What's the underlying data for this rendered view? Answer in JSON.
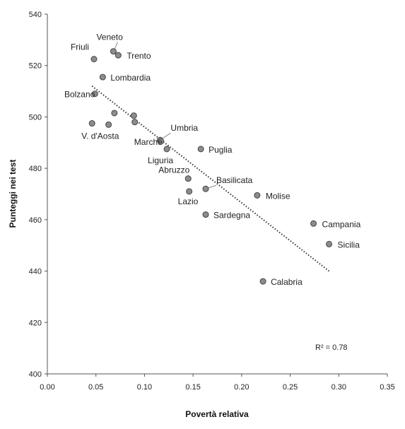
{
  "chart_data": {
    "type": "scatter",
    "title": "",
    "xlabel": "Povertà relativa",
    "ylabel": "Punteggi nei test",
    "xlim": [
      0.0,
      0.35
    ],
    "ylim": [
      400,
      540
    ],
    "x_ticks": [
      "0.00",
      "0.05",
      "0.10",
      "0.15",
      "0.20",
      "0.25",
      "0.30",
      "0.35"
    ],
    "y_ticks": [
      "400",
      "420",
      "440",
      "460",
      "480",
      "500",
      "520",
      "540"
    ],
    "grid": false,
    "legend": "none",
    "marker_color": "#8c8c8c",
    "trendline": {
      "style": "dotted",
      "x": [
        0.046,
        0.29
      ],
      "y": [
        512,
        440
      ]
    },
    "r2_label": "R² = 0.78",
    "points": [
      {
        "label": "Veneto",
        "x": 0.068,
        "y": 525.5
      },
      {
        "label": "Trento",
        "x": 0.073,
        "y": 524
      },
      {
        "label": "Friuli",
        "x": 0.048,
        "y": 522.5
      },
      {
        "label": "Lombardia",
        "x": 0.057,
        "y": 515.5
      },
      {
        "label": "Bolzano",
        "x": 0.049,
        "y": 509
      },
      {
        "label": "",
        "x": 0.069,
        "y": 501.5
      },
      {
        "label": "",
        "x": 0.089,
        "y": 500.5
      },
      {
        "label": "V. d'Aosta",
        "x": 0.046,
        "y": 497.5
      },
      {
        "label": "",
        "x": 0.063,
        "y": 497
      },
      {
        "label": "",
        "x": 0.09,
        "y": 498
      },
      {
        "label": "Umbria",
        "x": 0.116,
        "y": 491
      },
      {
        "label": "Marche",
        "x": 0.117,
        "y": 490.5
      },
      {
        "label": "Liguria",
        "x": 0.123,
        "y": 487.5
      },
      {
        "label": "Puglia",
        "x": 0.158,
        "y": 487.5
      },
      {
        "label": "Abruzzo",
        "x": 0.145,
        "y": 476
      },
      {
        "label": "Basilicata",
        "x": 0.163,
        "y": 472
      },
      {
        "label": "Lazio",
        "x": 0.146,
        "y": 471
      },
      {
        "label": "Molise",
        "x": 0.216,
        "y": 469.5
      },
      {
        "label": "Sardegna",
        "x": 0.163,
        "y": 462
      },
      {
        "label": "Campania",
        "x": 0.274,
        "y": 458.5
      },
      {
        "label": "Sicilia",
        "x": 0.29,
        "y": 450.5
      },
      {
        "label": "Calabria",
        "x": 0.222,
        "y": 436
      }
    ]
  }
}
